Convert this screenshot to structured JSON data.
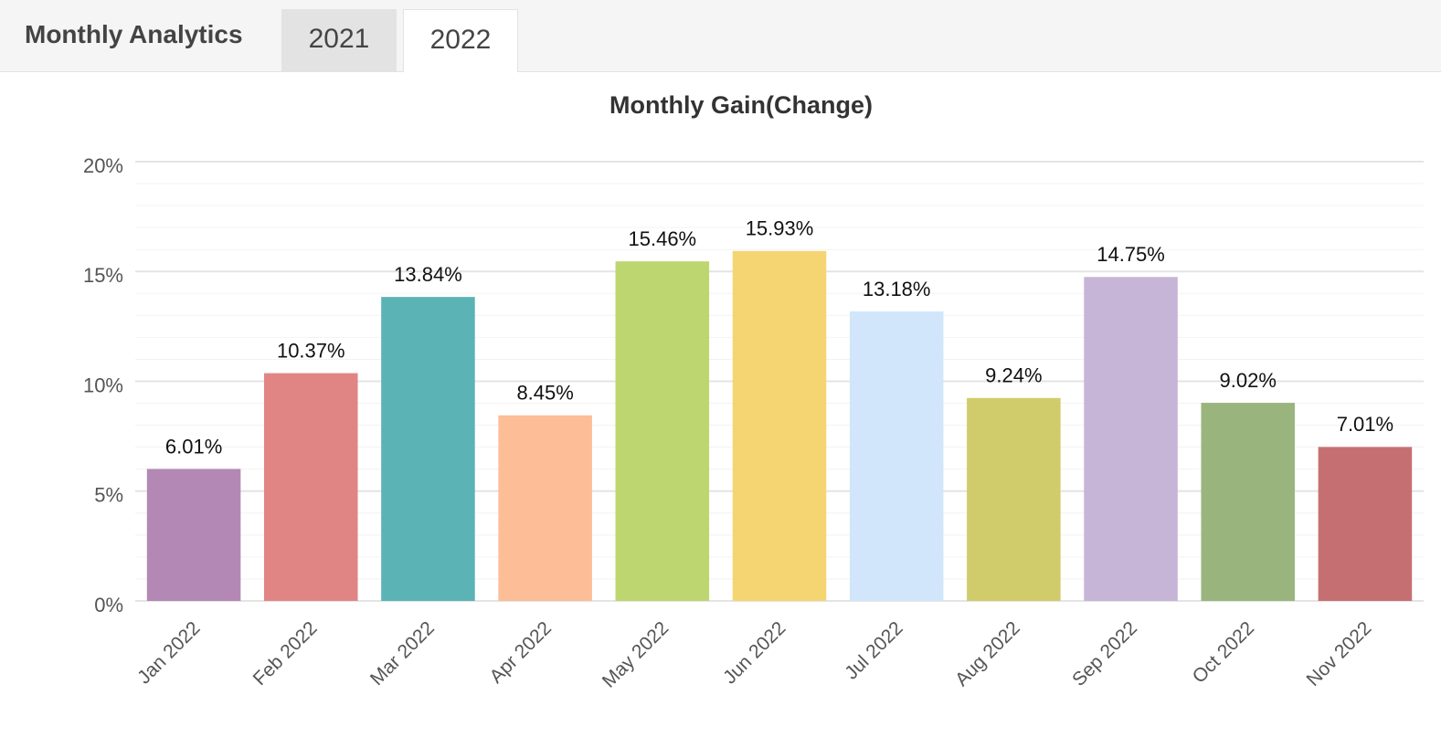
{
  "header": {
    "title": "Monthly Analytics",
    "tabs": [
      {
        "label": "2021",
        "active": false
      },
      {
        "label": "2022",
        "active": true
      }
    ]
  },
  "chart_data": {
    "type": "bar",
    "title": "Monthly Gain(Change)",
    "categories": [
      "Jan 2022",
      "Feb 2022",
      "Mar 2022",
      "Apr 2022",
      "May 2022",
      "Jun 2022",
      "Jul 2022",
      "Aug 2022",
      "Sep 2022",
      "Oct 2022",
      "Nov 2022"
    ],
    "values": [
      6.01,
      10.37,
      13.84,
      8.45,
      15.46,
      15.93,
      13.18,
      9.24,
      14.75,
      9.02,
      7.01
    ],
    "value_labels": [
      "6.01%",
      "10.37%",
      "13.84%",
      "8.45%",
      "15.46%",
      "15.93%",
      "13.18%",
      "9.24%",
      "14.75%",
      "9.02%",
      "7.01%"
    ],
    "colors": [
      "#b388b4",
      "#e18584",
      "#5bb3b5",
      "#fdbd96",
      "#bed66f",
      "#f4d572",
      "#d1e6fa",
      "#d1cc6b",
      "#c6b5d7",
      "#9ab47e",
      "#c66f72"
    ],
    "ylim": [
      0,
      20
    ],
    "yticks": [
      {
        "value": 0,
        "label": "0%"
      },
      {
        "value": 5,
        "label": "5%"
      },
      {
        "value": 10,
        "label": "10%"
      },
      {
        "value": 15,
        "label": "15%"
      },
      {
        "value": 20,
        "label": "20%"
      }
    ],
    "minor_yticks": [
      1,
      2,
      3,
      4,
      6,
      7,
      8,
      9,
      11,
      12,
      13,
      14,
      16,
      17,
      18,
      19
    ],
    "grid": true
  }
}
